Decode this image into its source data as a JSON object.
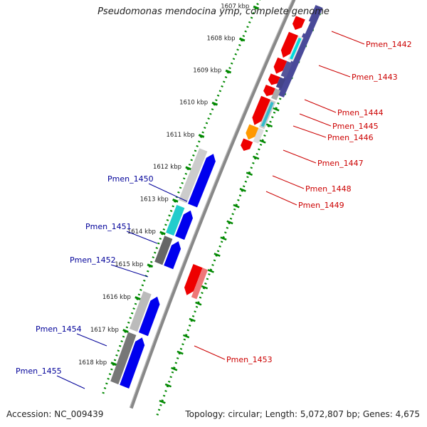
{
  "title": "Pseudomonas mendocina ymp, complete genome",
  "footer": {
    "accession": "Accession: NC_009439",
    "topology": "Topology: circular; Length: 5,072,807 bp; Genes: 4,675"
  },
  "colors": {
    "forward_label": "#cc0000",
    "reverse_label": "#000099",
    "forward_cds": "#ee0000",
    "reverse_cds": "#0000ee",
    "tick": "#008800",
    "backbone": "#888888"
  },
  "scale": {
    "unit": "kbp",
    "ticks": [
      "1607 kbp",
      "1608 kbp",
      "1609 kbp",
      "1610 kbp",
      "1611 kbp",
      "1612 kbp",
      "1613 kbp",
      "1614 kbp",
      "1615 kbp",
      "1616 kbp",
      "1617 kbp",
      "1618 kbp"
    ]
  },
  "forward_genes": [
    {
      "name": "Pmen_1442",
      "start": 1606.8,
      "end": 1607.18
    },
    {
      "name": "Pmen_1443",
      "start": 1607.3,
      "end": 1608.05
    },
    {
      "name": "Pmen_1444",
      "start": 1608.1,
      "end": 1608.55
    },
    {
      "name": "Pmen_1445",
      "start": 1608.6,
      "end": 1608.9
    },
    {
      "name": "Pmen_1446",
      "start": 1608.95,
      "end": 1609.25
    },
    {
      "name": "Pmen_1447",
      "start": 1609.3,
      "end": 1610.15
    },
    {
      "name": "Pmen_1448",
      "start": 1610.18,
      "end": 1610.6
    },
    {
      "name": "Pmen_1449",
      "start": 1610.62,
      "end": 1610.95
    },
    {
      "name": "Pmen_1453",
      "start": 1614.5,
      "end": 1615.4
    }
  ],
  "reverse_genes": [
    {
      "name": "Pmen_1450",
      "start": 1611.35,
      "end": 1612.95
    },
    {
      "name": "Pmen_1451",
      "start": 1613.1,
      "end": 1613.95
    },
    {
      "name": "Pmen_1452",
      "start": 1614.05,
      "end": 1614.85
    },
    {
      "name": "Pmen_1454",
      "start": 1615.75,
      "end": 1616.9
    },
    {
      "name": "Pmen_1455",
      "start": 1617.0,
      "end": 1618.5
    }
  ]
}
